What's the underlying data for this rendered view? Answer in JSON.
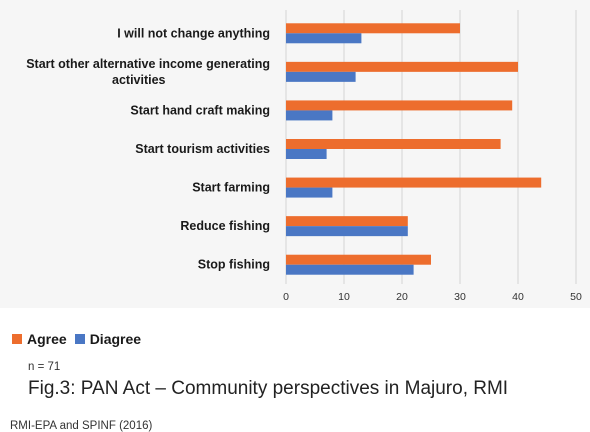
{
  "chart_data": {
    "type": "bar",
    "orientation": "horizontal",
    "categories": [
      [
        "I will not change anything"
      ],
      [
        "Start other alternative income generating",
        "activities"
      ],
      [
        "Start hand craft making"
      ],
      [
        "Start tourism activities"
      ],
      [
        "Start farming"
      ],
      [
        "Reduce fishing"
      ],
      [
        "Stop fishing"
      ]
    ],
    "series": [
      {
        "name": "Agree",
        "color": "#ed6d2d",
        "values": [
          30,
          40,
          39,
          37,
          44,
          21,
          25
        ]
      },
      {
        "name": "Diagree",
        "color": "#4a77c4",
        "values": [
          13,
          12,
          8,
          7,
          8,
          21,
          22
        ]
      }
    ],
    "xlim": [
      0,
      50
    ],
    "xticks": [
      0,
      10,
      20,
      30,
      40,
      50
    ],
    "grid": true,
    "legend": "bottom-left"
  },
  "legend_labels": {
    "agree": "Agree",
    "disagree": "Diagree"
  },
  "note": "n = 71",
  "caption": "Fig.3: PAN Act – Community perspectives in Majuro, RMI",
  "source": "RMI-EPA and SPINF (2016)"
}
